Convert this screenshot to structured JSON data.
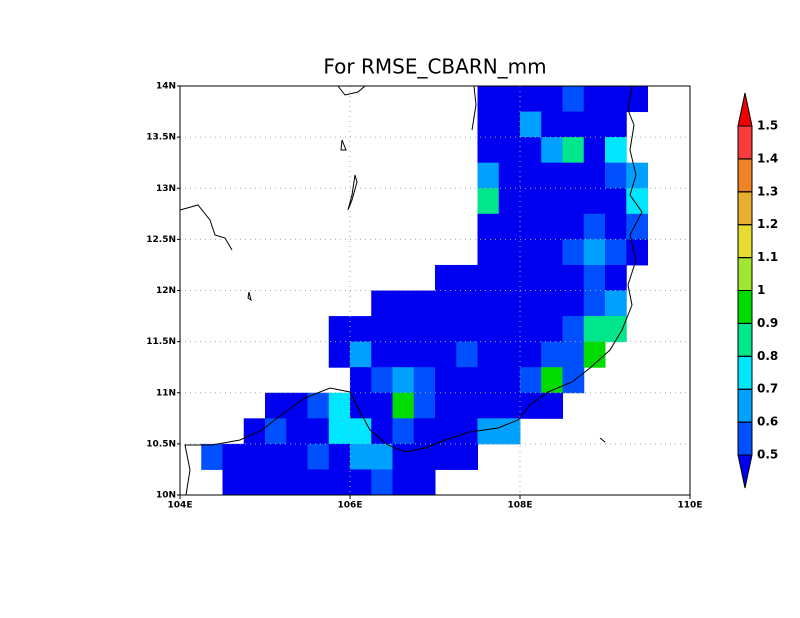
{
  "chart_data": {
    "type": "heatmap",
    "title": "For RMSE_CBARN_mm",
    "xlim": [
      104,
      110
    ],
    "ylim": [
      10,
      14
    ],
    "xticks": [
      {
        "value": 104,
        "label": "104E"
      },
      {
        "value": 106,
        "label": "106E"
      },
      {
        "value": 108,
        "label": "108E"
      },
      {
        "value": 110,
        "label": "110E"
      }
    ],
    "yticks": [
      {
        "value": 10,
        "label": "10N"
      },
      {
        "value": 10.5,
        "label": "10.5N"
      },
      {
        "value": 11,
        "label": "11N"
      },
      {
        "value": 11.5,
        "label": "11.5N"
      },
      {
        "value": 12,
        "label": "12N"
      },
      {
        "value": 12.5,
        "label": "12.5N"
      },
      {
        "value": 13,
        "label": "13N"
      },
      {
        "value": 13.5,
        "label": "13.5N"
      },
      {
        "value": 14,
        "label": "14N"
      }
    ],
    "grid": true,
    "z": [
      [
        null,
        null,
        null,
        null,
        null,
        null,
        null,
        null,
        null,
        null,
        null,
        null,
        null,
        null,
        0.45,
        0.45,
        0.45,
        0.45,
        0.55,
        0.45,
        0.45,
        0.45,
        null,
        null
      ],
      [
        null,
        null,
        null,
        null,
        null,
        null,
        null,
        null,
        null,
        null,
        null,
        null,
        null,
        null,
        0.45,
        0.45,
        0.65,
        0.45,
        0.45,
        0.45,
        0.45,
        null,
        null,
        null
      ],
      [
        null,
        null,
        null,
        null,
        null,
        null,
        null,
        null,
        null,
        null,
        null,
        null,
        null,
        null,
        0.45,
        0.45,
        0.45,
        0.65,
        0.85,
        0.45,
        0.75,
        null,
        null,
        null
      ],
      [
        null,
        null,
        null,
        null,
        null,
        null,
        null,
        null,
        null,
        null,
        null,
        null,
        null,
        null,
        0.65,
        0.45,
        0.45,
        0.45,
        0.45,
        0.45,
        0.55,
        0.65,
        null,
        null
      ],
      [
        null,
        null,
        null,
        null,
        null,
        null,
        null,
        null,
        null,
        null,
        null,
        null,
        null,
        null,
        0.85,
        0.45,
        0.45,
        0.45,
        0.45,
        0.45,
        0.45,
        0.75,
        null,
        null
      ],
      [
        null,
        null,
        null,
        null,
        null,
        null,
        null,
        null,
        null,
        null,
        null,
        null,
        null,
        null,
        0.45,
        0.45,
        0.45,
        0.45,
        0.45,
        0.55,
        0.45,
        0.55,
        null,
        null
      ],
      [
        null,
        null,
        null,
        null,
        null,
        null,
        null,
        null,
        null,
        null,
        null,
        null,
        null,
        null,
        0.45,
        0.45,
        0.45,
        0.45,
        0.55,
        0.65,
        0.55,
        0.45,
        null,
        null
      ],
      [
        null,
        null,
        null,
        null,
        null,
        null,
        null,
        null,
        null,
        null,
        null,
        null,
        0.45,
        0.45,
        0.45,
        0.45,
        0.45,
        0.45,
        0.45,
        0.55,
        0.45,
        null,
        null,
        null
      ],
      [
        null,
        null,
        null,
        null,
        null,
        null,
        null,
        null,
        null,
        0.45,
        0.45,
        0.45,
        0.45,
        0.45,
        0.45,
        0.45,
        0.45,
        0.45,
        0.45,
        0.55,
        0.65,
        null,
        null,
        null
      ],
      [
        null,
        null,
        null,
        null,
        null,
        null,
        null,
        0.45,
        0.45,
        0.45,
        0.45,
        0.45,
        0.45,
        0.45,
        0.45,
        0.45,
        0.45,
        0.45,
        0.55,
        0.85,
        0.85,
        null,
        null,
        null
      ],
      [
        null,
        null,
        null,
        null,
        null,
        null,
        null,
        0.45,
        0.65,
        0.45,
        0.45,
        0.45,
        0.45,
        0.55,
        0.45,
        0.45,
        0.45,
        0.55,
        0.55,
        0.95,
        null,
        null,
        null,
        null
      ],
      [
        null,
        null,
        null,
        null,
        null,
        null,
        null,
        null,
        0.45,
        0.55,
        0.65,
        0.55,
        0.45,
        0.45,
        0.45,
        0.45,
        0.55,
        0.95,
        0.55,
        null,
        null,
        null,
        null,
        null
      ],
      [
        null,
        null,
        null,
        null,
        0.45,
        0.45,
        0.55,
        0.75,
        0.45,
        0.45,
        0.95,
        0.55,
        0.45,
        0.45,
        0.45,
        0.45,
        0.45,
        0.45,
        null,
        null,
        null,
        null,
        null,
        null
      ],
      [
        null,
        null,
        null,
        0.45,
        0.55,
        0.45,
        0.45,
        0.75,
        0.75,
        0.45,
        0.55,
        0.45,
        0.45,
        0.45,
        0.65,
        0.65,
        null,
        null,
        null,
        null,
        null,
        null,
        null,
        null
      ],
      [
        null,
        0.55,
        0.45,
        0.45,
        0.45,
        0.45,
        0.55,
        0.45,
        0.65,
        0.65,
        0.45,
        0.45,
        0.45,
        0.45,
        null,
        null,
        null,
        null,
        null,
        null,
        null,
        null,
        null,
        null
      ],
      [
        null,
        null,
        0.45,
        0.45,
        0.45,
        0.45,
        0.45,
        0.45,
        0.45,
        0.55,
        0.45,
        0.45,
        null,
        null,
        null,
        null,
        null,
        null,
        null,
        null,
        null,
        null,
        null,
        null
      ]
    ],
    "levels": [
      0.5,
      0.6,
      0.7,
      0.8,
      0.9,
      1,
      1.1,
      1.2,
      1.3,
      1.4,
      1.5
    ],
    "colors": [
      "#0000f0",
      "#0050ff",
      "#00a0ff",
      "#00e6ff",
      "#00e68c",
      "#00dc00",
      "#a0e632",
      "#e6dc32",
      "#e6af2d",
      "#f08228",
      "#fa3c3c",
      "#f00000"
    ]
  }
}
